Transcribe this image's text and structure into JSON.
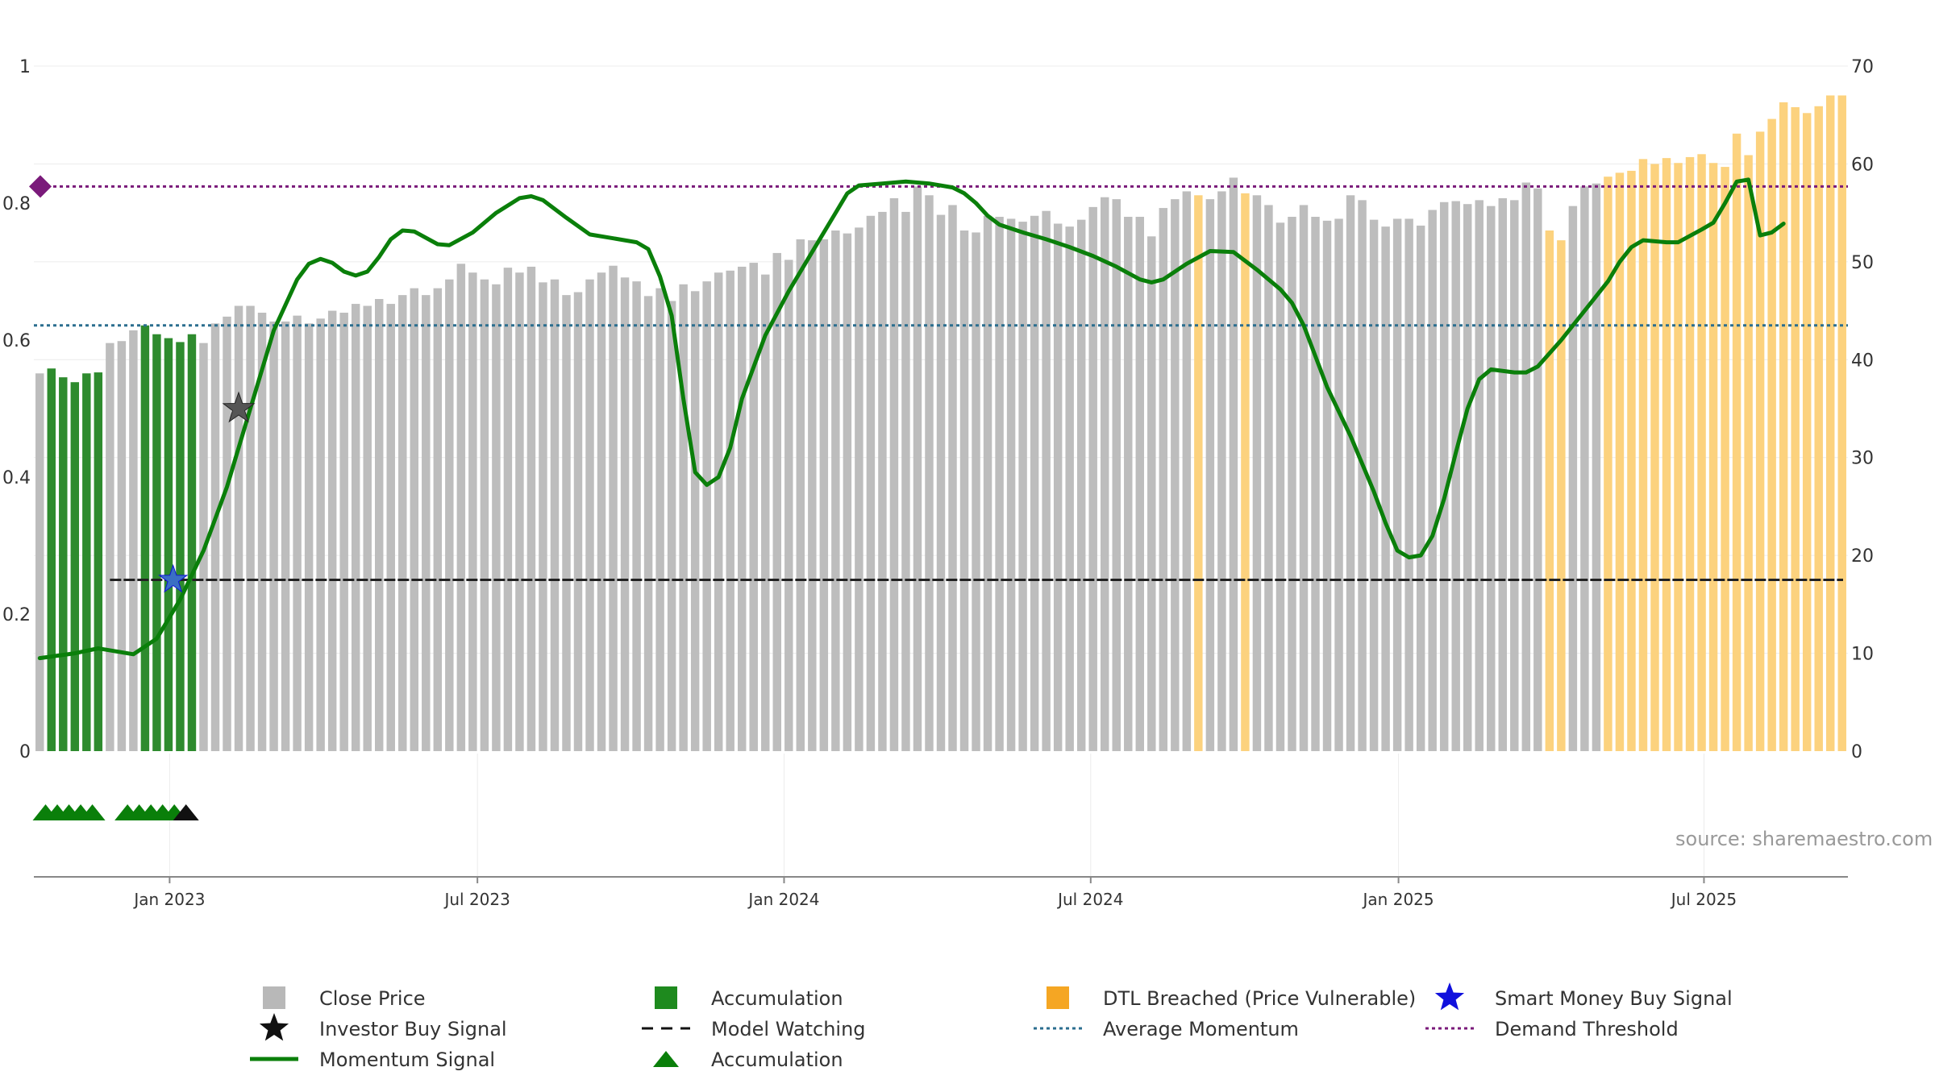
{
  "chart_data": {
    "type": "bar",
    "source": "source: sharemaestro.com",
    "left_axis": {
      "ticks": [
        "0",
        "0.2",
        "0.4",
        "0.6",
        "0.8",
        "1"
      ],
      "values": [
        0,
        0.2,
        0.4,
        0.6,
        0.8,
        1
      ],
      "ylim": [
        0,
        1
      ]
    },
    "right_axis": {
      "ticks": [
        "0",
        "10",
        "20",
        "30",
        "40",
        "50",
        "60",
        "70"
      ],
      "values": [
        0,
        10,
        20,
        30,
        40,
        50,
        60,
        70
      ],
      "ylim": [
        0,
        70
      ]
    },
    "x_axis": {
      "labels": [
        "Jan 2023",
        "Jul 2023",
        "Jan 2024",
        "Jul 2024",
        "Jan 2025",
        "Jul 2025"
      ],
      "label_weeks": [
        11.6,
        37.9,
        64.1,
        90.3,
        116.6,
        142.7
      ],
      "start": "Sep 2022",
      "weeks": 157
    },
    "close_price": [
      38.6,
      39.1,
      38.2,
      37.7,
      38.6,
      38.7,
      41.7,
      41.9,
      43.0,
      43.5,
      42.6,
      42.2,
      41.8,
      42.6,
      41.7,
      43.7,
      44.4,
      45.5,
      45.5,
      44.8,
      43.9,
      43.9,
      44.5,
      43.7,
      44.2,
      45.0,
      44.8,
      45.7,
      45.5,
      46.2,
      45.7,
      46.6,
      47.3,
      46.6,
      47.3,
      48.2,
      49.8,
      48.9,
      48.2,
      47.7,
      49.4,
      48.9,
      49.5,
      47.9,
      48.2,
      46.6,
      46.9,
      48.2,
      48.9,
      49.6,
      48.4,
      48.0,
      46.5,
      47.3,
      46.0,
      47.7,
      47.0,
      48.0,
      48.9,
      49.1,
      49.5,
      49.9,
      48.7,
      50.9,
      50.2,
      52.3,
      52.2,
      52.3,
      53.2,
      52.9,
      53.5,
      54.7,
      55.1,
      56.5,
      55.1,
      57.7,
      56.8,
      54.8,
      55.8,
      53.2,
      53.0,
      54.7,
      54.6,
      54.4,
      54.1,
      54.7,
      55.2,
      53.9,
      53.6,
      54.3,
      55.6,
      56.6,
      56.4,
      54.6,
      54.6,
      52.6,
      55.5,
      56.4,
      57.2,
      56.8,
      56.4,
      57.2,
      58.6,
      57.0,
      56.8,
      55.8,
      54.0,
      54.6,
      55.8,
      54.6,
      54.2,
      54.4,
      56.8,
      56.3,
      54.3,
      53.6,
      54.4,
      54.4,
      53.7,
      55.3,
      56.1,
      56.2,
      55.9,
      56.3,
      55.7,
      56.5,
      56.3,
      58.1,
      57.5,
      53.2,
      52.2,
      55.7,
      57.7,
      58.0,
      58.7,
      59.1,
      59.3,
      60.5,
      60.0,
      60.6,
      60.1,
      60.7,
      61.0,
      60.1,
      59.7,
      63.1,
      60.9,
      63.3,
      64.6,
      66.3,
      65.8,
      65.2,
      65.9,
      67.0,
      67.0
    ],
    "category_per_week": "g=Accumulation, o=DTL Breached (Price Vulnerable), n=Close Price",
    "category_codes": "ngggggnnngggggnnnnnnnnnnnnnnnnnnnnnnnnnnnnnnnnnnnnnnnnnnnnnnnnnnnnnnnnnnnnnnnnnnnnnnnnnnnnnnnnnnnnnonnnonnnnnnnnnnnnnnnnnnnnnnnnnoonnnoooooooooooooooooooooo",
    "momentum_signal": [
      [
        0,
        9.5
      ],
      [
        3,
        10
      ],
      [
        5,
        10.5
      ],
      [
        8,
        9.9
      ],
      [
        10,
        11.5
      ],
      [
        12,
        15.5
      ],
      [
        14,
        20.5
      ],
      [
        16,
        27
      ],
      [
        18,
        35
      ],
      [
        20,
        43
      ],
      [
        22,
        48.2
      ],
      [
        23,
        49.8
      ],
      [
        24,
        50.3
      ],
      [
        25,
        49.9
      ],
      [
        26,
        49.0
      ],
      [
        27,
        48.6
      ],
      [
        28,
        49.0
      ],
      [
        29,
        50.5
      ],
      [
        30,
        52.3
      ],
      [
        31,
        53.2
      ],
      [
        32,
        53.1
      ],
      [
        34,
        51.8
      ],
      [
        35,
        51.7
      ],
      [
        37,
        53
      ],
      [
        39,
        55
      ],
      [
        41,
        56.5
      ],
      [
        42,
        56.7
      ],
      [
        43,
        56.3
      ],
      [
        45,
        54.5
      ],
      [
        47,
        52.8
      ],
      [
        49,
        52.4
      ],
      [
        51,
        52.0
      ],
      [
        52,
        51.3
      ],
      [
        53,
        48.5
      ],
      [
        54,
        44.5
      ],
      [
        55,
        36
      ],
      [
        56,
        28.5
      ],
      [
        57,
        27.2
      ],
      [
        58,
        28
      ],
      [
        59,
        31
      ],
      [
        60,
        36
      ],
      [
        62,
        42.5
      ],
      [
        64,
        47
      ],
      [
        66,
        51
      ],
      [
        68,
        55
      ],
      [
        69,
        57
      ],
      [
        70,
        57.8
      ],
      [
        72,
        58.0
      ],
      [
        74,
        58.2
      ],
      [
        76,
        58.0
      ],
      [
        78,
        57.6
      ],
      [
        79,
        57.0
      ],
      [
        80,
        56.0
      ],
      [
        81,
        54.7
      ],
      [
        82,
        53.8
      ],
      [
        84,
        53
      ],
      [
        86,
        52.3
      ],
      [
        88,
        51.5
      ],
      [
        90,
        50.6
      ],
      [
        92,
        49.5
      ],
      [
        94,
        48.2
      ],
      [
        95,
        47.9
      ],
      [
        96,
        48.2
      ],
      [
        98,
        49.8
      ],
      [
        100,
        51.1
      ],
      [
        102,
        51.0
      ],
      [
        104,
        49.2
      ],
      [
        106,
        47.2
      ],
      [
        107,
        45.8
      ],
      [
        108,
        43.5
      ],
      [
        110,
        37.2
      ],
      [
        112,
        32.2
      ],
      [
        114,
        26.5
      ],
      [
        115,
        23.3
      ],
      [
        116,
        20.5
      ],
      [
        117,
        19.8
      ],
      [
        118,
        20
      ],
      [
        119,
        22
      ],
      [
        120,
        25.8
      ],
      [
        121,
        30.5
      ],
      [
        122,
        35
      ],
      [
        123,
        38
      ],
      [
        124,
        39
      ],
      [
        126,
        38.7
      ],
      [
        127,
        38.7
      ],
      [
        128,
        39.3
      ],
      [
        130,
        42
      ],
      [
        132,
        45
      ],
      [
        134,
        48
      ],
      [
        135,
        50
      ],
      [
        136,
        51.5
      ],
      [
        137,
        52.2
      ],
      [
        139,
        52
      ],
      [
        140,
        52
      ],
      [
        142,
        53.3
      ],
      [
        143,
        54
      ],
      [
        144,
        56
      ],
      [
        145,
        58.2
      ],
      [
        146,
        58.4
      ],
      [
        147,
        52.7
      ],
      [
        148,
        53
      ],
      [
        149,
        53.9
      ]
    ],
    "accumulation_markers": [
      0.5,
      1.5,
      2.5,
      3.5,
      4.5,
      7.5,
      8.5,
      9.5,
      10.5,
      11.5
    ],
    "investor_buy_signal_markers": [
      12.5
    ],
    "investor_buy_signal_stars": [
      {
        "week": 17.5,
        "value": 35
      }
    ],
    "smart_money_buy_signal_stars": [
      {
        "week": 11.9,
        "value": 17.5
      }
    ],
    "reference_lines": {
      "average_momentum": 43.5,
      "demand_threshold": 57.7,
      "model_watching": 17.5
    },
    "colors": {
      "close_price": "#bdbdbd",
      "accumulation": "#2e8b2e",
      "dtl_breached": "#fcd27e",
      "momentum": "#0a7f0a",
      "average_momentum": "#2b6e8f",
      "demand_threshold": "#7a1a7a",
      "model_watching": "#222222",
      "smart_money": "#1010dd"
    },
    "legend": [
      {
        "label": "Close Price",
        "symbol": "square",
        "color": "#b8b8b8"
      },
      {
        "label": "Accumulation",
        "symbol": "square",
        "color": "#1e8a1e"
      },
      {
        "label": "DTL Breached (Price Vulnerable)",
        "symbol": "square",
        "color": "#f5a623"
      },
      {
        "label": "Smart Money Buy Signal",
        "symbol": "star",
        "color": "#1010dd"
      },
      {
        "label": "Investor Buy Signal",
        "symbol": "star",
        "color": "#111111"
      },
      {
        "label": "Model Watching",
        "symbol": "dash",
        "color": "#111111"
      },
      {
        "label": "Average Momentum",
        "symbol": "dot",
        "color": "#2b6e8f"
      },
      {
        "label": "Demand Threshold",
        "symbol": "dot",
        "color": "#7a1a7a"
      },
      {
        "label": "Momentum Signal",
        "symbol": "line",
        "color": "#0a7f0a"
      },
      {
        "label": "Accumulation",
        "symbol": "triangle",
        "color": "#0a7f0a"
      }
    ]
  }
}
